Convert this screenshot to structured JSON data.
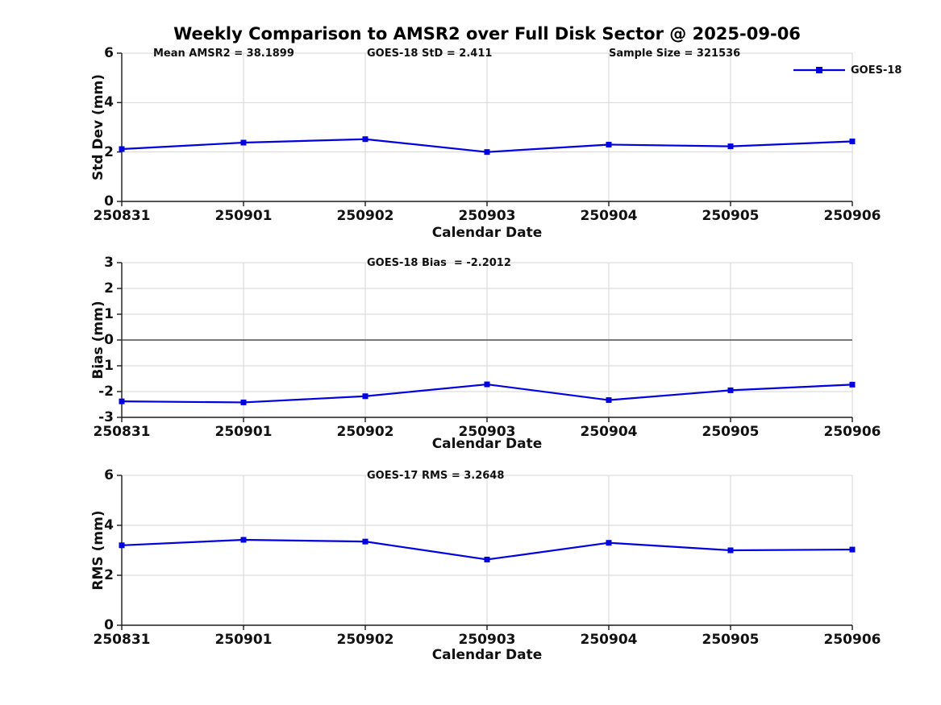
{
  "figure": {
    "title": "Weekly Comparison to AMSR2 over Full Disk Sector @ 2025-09-06",
    "legend": {
      "label": "GOES-18"
    }
  },
  "colors": {
    "series_line": "#0000e0",
    "grid": "#d6d6d6",
    "spine": "#1a1a1a",
    "zero_line": "#4d4d4d",
    "text": "#111111",
    "background": "#ffffff"
  },
  "chart_data": [
    {
      "type": "line",
      "panel": "std-dev",
      "annotations": [
        "Mean AMSR2 = 38.1899",
        "GOES-18 StD = 2.411",
        "Sample Size = 321536"
      ],
      "categories": [
        "250831",
        "250901",
        "250902",
        "250903",
        "250904",
        "250905",
        "250906"
      ],
      "series": [
        {
          "name": "GOES-18",
          "values": [
            2.12,
            2.38,
            2.52,
            2.0,
            2.3,
            2.23,
            2.43
          ]
        }
      ],
      "xlabel": "Calendar Date",
      "ylabel": "Std Dev (mm)",
      "ylim": [
        0,
        6
      ],
      "yticks": [
        0,
        2,
        4,
        6
      ],
      "grid": true,
      "zero_line": false,
      "legend_position": "upper-right",
      "marker": "square"
    },
    {
      "type": "line",
      "panel": "bias",
      "annotations": [
        "GOES-18 Bias  = -2.2012"
      ],
      "categories": [
        "250831",
        "250901",
        "250902",
        "250903",
        "250904",
        "250905",
        "250906"
      ],
      "series": [
        {
          "name": "GOES-18",
          "values": [
            -2.38,
            -2.42,
            -2.18,
            -1.72,
            -2.33,
            -1.95,
            -1.73
          ]
        }
      ],
      "xlabel": "Calendar Date",
      "ylabel": "Bias (mm)",
      "ylim": [
        -3,
        3
      ],
      "yticks": [
        -3,
        -2,
        -1,
        0,
        1,
        2,
        3
      ],
      "grid": true,
      "zero_line": true,
      "legend_position": "none",
      "marker": "square"
    },
    {
      "type": "line",
      "panel": "rms",
      "annotations": [
        "GOES-17 RMS = 3.2648"
      ],
      "categories": [
        "250831",
        "250901",
        "250902",
        "250903",
        "250904",
        "250905",
        "250906"
      ],
      "series": [
        {
          "name": "GOES-18",
          "values": [
            3.2,
            3.42,
            3.35,
            2.63,
            3.3,
            3.0,
            3.03
          ]
        }
      ],
      "xlabel": "Calendar Date",
      "ylabel": "RMS (mm)",
      "ylim": [
        0,
        6
      ],
      "yticks": [
        0,
        2,
        4,
        6
      ],
      "grid": true,
      "zero_line": false,
      "legend_position": "none",
      "marker": "square"
    }
  ]
}
